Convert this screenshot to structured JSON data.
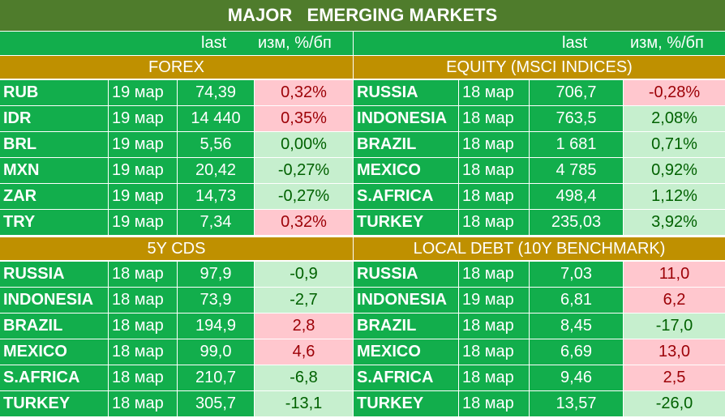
{
  "title": "MAJOR   EMERGING MARKETS",
  "columns": {
    "last": "last",
    "change": "изм, %/бп"
  },
  "panels": {
    "forex": {
      "title": "FOREX",
      "rows": [
        {
          "name": "RUB",
          "date": "19 мар",
          "last": "74,39",
          "change": "0,32%",
          "status": "neg"
        },
        {
          "name": "IDR",
          "date": "19 мар",
          "last": "14 440",
          "change": "0,35%",
          "status": "neg"
        },
        {
          "name": "BRL",
          "date": "19 мар",
          "last": "5,56",
          "change": "0,00%",
          "status": "neu"
        },
        {
          "name": "MXN",
          "date": "19 мар",
          "last": "20,42",
          "change": "-0,27%",
          "status": "pos"
        },
        {
          "name": "ZAR",
          "date": "19 мар",
          "last": "14,73",
          "change": "-0,27%",
          "status": "pos"
        },
        {
          "name": "TRY",
          "date": "19 мар",
          "last": "7,34",
          "change": "0,32%",
          "status": "neg"
        }
      ]
    },
    "equity": {
      "title": "EQUITY (MSCI INDICES)",
      "rows": [
        {
          "name": "RUSSIA",
          "date": "18 мар",
          "last": "706,7",
          "change": "-0,28%",
          "status": "neg"
        },
        {
          "name": "INDONESIA",
          "date": "18 мар",
          "last": "763,5",
          "change": "2,08%",
          "status": "pos"
        },
        {
          "name": "BRAZIL",
          "date": "18 мар",
          "last": "1 681",
          "change": "0,71%",
          "status": "pos"
        },
        {
          "name": "MEXICO",
          "date": "18 мар",
          "last": "4 785",
          "change": "0,92%",
          "status": "pos"
        },
        {
          "name": "S.AFRICA",
          "date": "18 мар",
          "last": "498,4",
          "change": "1,12%",
          "status": "pos"
        },
        {
          "name": "TURKEY",
          "date": "18 мар",
          "last": "235,03",
          "change": "3,92%",
          "status": "pos"
        }
      ]
    },
    "cds": {
      "title": "5Y CDS",
      "rows": [
        {
          "name": "RUSSIA",
          "date": "18 мар",
          "last": "97,9",
          "change": "-0,9",
          "status": "pos"
        },
        {
          "name": "INDONESIA",
          "date": "18 мар",
          "last": "73,9",
          "change": "-2,7",
          "status": "pos"
        },
        {
          "name": "BRAZIL",
          "date": "18 мар",
          "last": "194,9",
          "change": "2,8",
          "status": "neg"
        },
        {
          "name": "MEXICO",
          "date": "18 мар",
          "last": "99,0",
          "change": "4,6",
          "status": "neg"
        },
        {
          "name": "S.AFRICA",
          "date": "18 мар",
          "last": "210,7",
          "change": "-6,8",
          "status": "pos"
        },
        {
          "name": "TURKEY",
          "date": "18 мар",
          "last": "305,7",
          "change": "-13,1",
          "status": "pos"
        }
      ]
    },
    "debt": {
      "title": "LOCAL DEBT (10Y BENCHMARK)",
      "rows": [
        {
          "name": "RUSSIA",
          "date": "18 мар",
          "last": "7,03",
          "change": "11,0",
          "status": "neg"
        },
        {
          "name": "INDONESIA",
          "date": "19 мар",
          "last": "6,81",
          "change": "6,2",
          "status": "neg"
        },
        {
          "name": "BRAZIL",
          "date": "18 мар",
          "last": "8,45",
          "change": "-17,0",
          "status": "pos"
        },
        {
          "name": "MEXICO",
          "date": "18 мар",
          "last": "6,69",
          "change": "13,0",
          "status": "neg"
        },
        {
          "name": "S.AFRICA",
          "date": "18 мар",
          "last": "9,46",
          "change": "2,5",
          "status": "neg"
        },
        {
          "name": "TURKEY",
          "date": "18 мар",
          "last": "13,57",
          "change": "-26,0",
          "status": "pos"
        }
      ]
    }
  },
  "colors": {
    "title_bg": "#4f7c2c",
    "cell_bg": "#12ae4c",
    "section_bg": "#bf9000",
    "pos_bg": "#c6efce",
    "pos_fg": "#006100",
    "neg_bg": "#ffc7ce",
    "neg_fg": "#9c0006"
  }
}
